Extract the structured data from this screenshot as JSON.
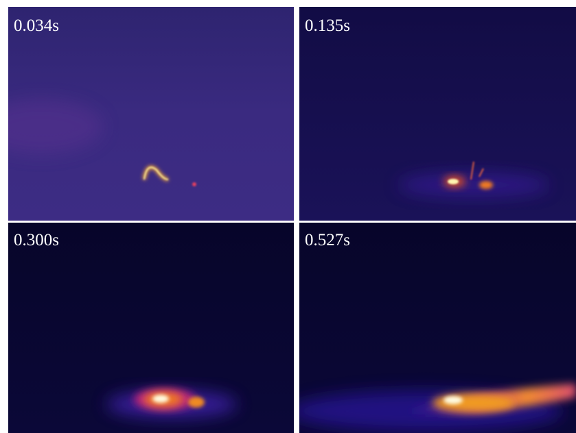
{
  "panels": [
    {
      "label": "0.034s"
    },
    {
      "label": "0.135s"
    },
    {
      "label": "0.300s"
    },
    {
      "label": "0.527s"
    }
  ]
}
